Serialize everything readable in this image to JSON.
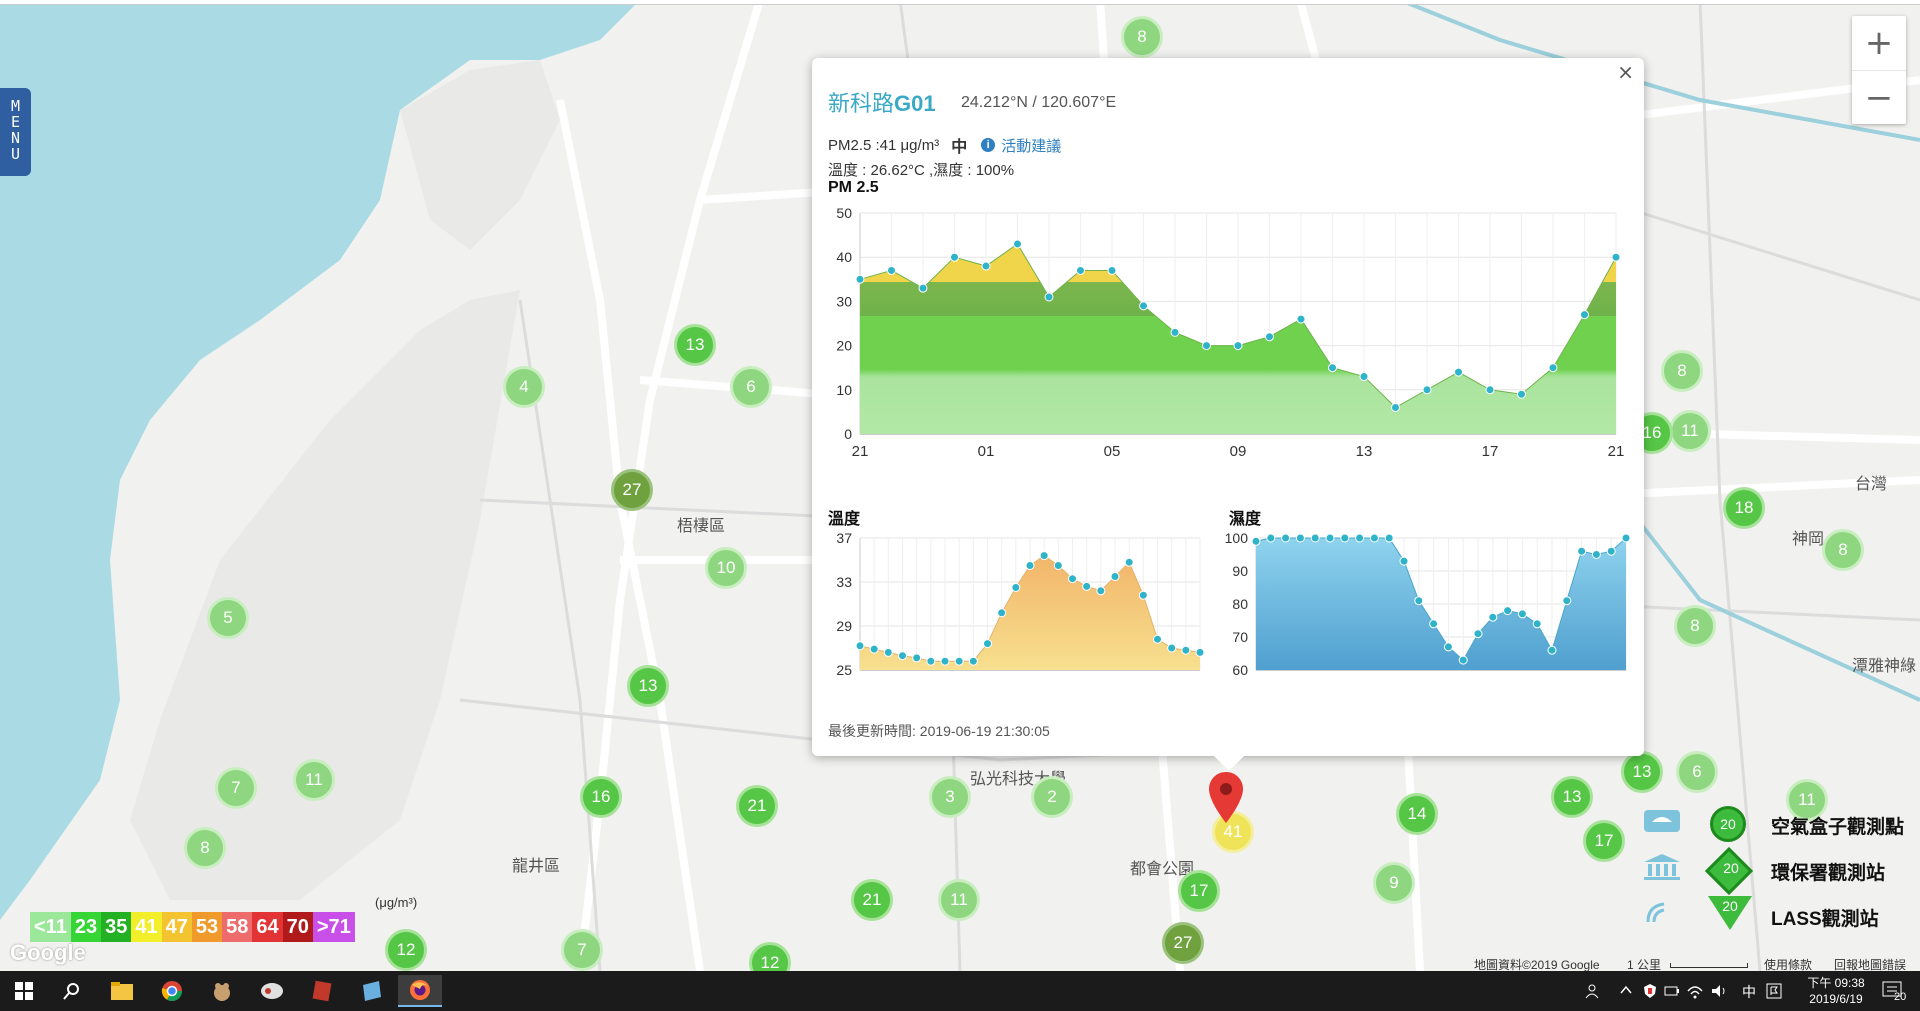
{
  "menu": {
    "label": "MENU",
    "letters": [
      "M",
      "E",
      "N",
      "U"
    ]
  },
  "zoom": {
    "in": "+",
    "out": "−"
  },
  "map": {
    "place_labels": {
      "wuqi": "梧棲區",
      "longjing": "龍井區",
      "hongguang": "弘光科技大學",
      "duhui": "都會公園",
      "shengang": "神岡",
      "taiwan": "台灣",
      "tanya": "潭雅神綠"
    },
    "markers": [
      "8",
      "13",
      "6",
      "4",
      "27",
      "10",
      "5",
      "13",
      "7",
      "11",
      "8",
      "16",
      "21",
      "3",
      "2",
      "21",
      "11",
      "17",
      "27",
      "7",
      "12",
      "12",
      "41",
      "14",
      "9",
      "13",
      "17",
      "13",
      "6",
      "11",
      "18",
      "8",
      "8",
      "16",
      "11",
      "8"
    ]
  },
  "popup": {
    "close": "×",
    "station_prefix": "新科路",
    "station_id": "G01",
    "coords": "24.212°N / 120.607°E",
    "pm_text": "PM2.5 :41 μg/m³",
    "level": "中",
    "advice_link": "活動建議",
    "temp_humidity": "溫度 : 26.62°C ,濕度 : 100%",
    "updated": "最後更新時間: 2019-06-19 21:30:05"
  },
  "chart_data": [
    {
      "type": "area",
      "title": "PM 2.5",
      "x_tick_labels": [
        "21",
        "01",
        "05",
        "09",
        "13",
        "17",
        "21"
      ],
      "ylim": [
        0,
        50
      ],
      "y_ticks": [
        0,
        10,
        20,
        30,
        40,
        50
      ],
      "grid": true,
      "series": [
        {
          "values": [
            35,
            37,
            33,
            40,
            38,
            43,
            31,
            37,
            37,
            29,
            23,
            20,
            20,
            22,
            26,
            15,
            13,
            6,
            10,
            14,
            10,
            9,
            15,
            27,
            40
          ]
        }
      ]
    },
    {
      "type": "area",
      "title": "溫度",
      "ylim": [
        25,
        37
      ],
      "y_ticks": [
        25,
        29,
        33,
        37
      ],
      "grid": true,
      "series": [
        {
          "values": [
            27.2,
            26.9,
            26.6,
            26.3,
            26.1,
            25.8,
            25.8,
            25.8,
            25.8,
            27.4,
            30.2,
            32.5,
            34.5,
            35.4,
            34.5,
            33.3,
            32.6,
            32.2,
            33.5,
            34.8,
            31.8,
            27.8,
            27.0,
            26.8,
            26.6
          ]
        }
      ]
    },
    {
      "type": "area",
      "title": "濕度",
      "ylim": [
        60,
        100
      ],
      "y_ticks": [
        60,
        70,
        80,
        90,
        100
      ],
      "grid": true,
      "series": [
        {
          "values": [
            99,
            100,
            100,
            100,
            100,
            100,
            100,
            100,
            100,
            100,
            93,
            81,
            74,
            67,
            63,
            71,
            76,
            78,
            77,
            74,
            66,
            81,
            96,
            95,
            96,
            100
          ]
        }
      ]
    }
  ],
  "legend": {
    "unit": "(μg/m³)",
    "bins": [
      {
        "label": "<11",
        "color": "#9be89b"
      },
      {
        "label": "23",
        "color": "#35d535"
      },
      {
        "label": "35",
        "color": "#23b023"
      },
      {
        "label": "41",
        "color": "#f2ee2a"
      },
      {
        "label": "47",
        "color": "#f4c430"
      },
      {
        "label": "53",
        "color": "#f19a2c"
      },
      {
        "label": "58",
        "color": "#ee6b6b"
      },
      {
        "label": "64",
        "color": "#e23434"
      },
      {
        "label": "70",
        "color": "#b11a1a"
      },
      {
        "label": ">71",
        "color": "#c84fe8"
      }
    ]
  },
  "map_legend": {
    "airbox": {
      "label": "空氣盒子觀測點",
      "value": "20"
    },
    "epa": {
      "label": "環保署觀測站",
      "value": "20"
    },
    "lass": {
      "label": "LASS觀測站",
      "value": "20"
    }
  },
  "attribution": {
    "google": "Google",
    "map_data": "地圖資料©2019 Google",
    "scale": "1 公里",
    "terms": "使用條款",
    "report": "回報地圖錯誤"
  },
  "taskbar": {
    "time": "下午 09:38",
    "date": "2019/6/19",
    "ime": "中",
    "notifications": "20"
  },
  "colors": {
    "accent": "#3aa9c6",
    "pm_green": "#6fd14e",
    "temp": "#f2c98a",
    "humidity": "#6cbfe0"
  }
}
